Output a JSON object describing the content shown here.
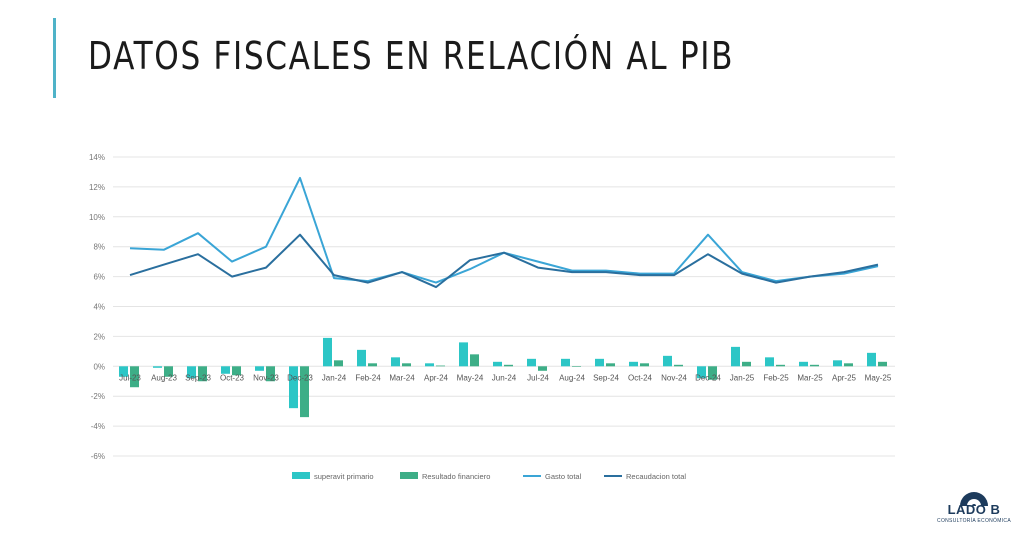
{
  "slide": {
    "title": "DATOS FISCALES EN RELACIÓN AL PIB"
  },
  "logo": {
    "name": "LADO B",
    "tagline": "CONSULTORÍA ECONÓMICA",
    "color": "#1d3b5c"
  },
  "colors": {
    "superavit": "#2cc6c6",
    "resultado": "#3dae87",
    "gasto": "#3aa5d6",
    "recaudacion": "#2a6f9e",
    "grid": "#e4e4e4",
    "accent": "#4fb3c8"
  },
  "chart_data": {
    "type": "bar",
    "y_unit": "%",
    "ylim": [
      -6,
      14
    ],
    "yticks": [
      -6,
      -4,
      -2,
      0,
      2,
      4,
      6,
      8,
      10,
      12,
      14
    ],
    "ytick_labels": [
      "-6%",
      "-4%",
      "-2%",
      "0%",
      "2%",
      "4%",
      "6%",
      "8%",
      "10%",
      "12%",
      "14%"
    ],
    "grid": true,
    "legend_position": "bottom",
    "categories": [
      "Jul-23",
      "Aug-23",
      "Sep-23",
      "Oct-23",
      "Nov-23",
      "Dec-23",
      "Jan-24",
      "Feb-24",
      "Mar-24",
      "Apr-24",
      "May-24",
      "Jun-24",
      "Jul-24",
      "Aug-24",
      "Sep-24",
      "Oct-24",
      "Nov-24",
      "Dec-24",
      "Jan-25",
      "Feb-25",
      "Mar-25",
      "Apr-25",
      "May-25"
    ],
    "series": [
      {
        "name": "superavit primario",
        "kind": "bar",
        "values": [
          -0.7,
          -0.1,
          -0.8,
          -0.5,
          -0.3,
          -2.8,
          1.9,
          1.1,
          0.6,
          0.2,
          1.6,
          0.3,
          0.5,
          0.5,
          0.5,
          0.3,
          0.7,
          -0.8,
          1.3,
          0.6,
          0.3,
          0.4,
          0.9
        ]
      },
      {
        "name": "Resultado financiero",
        "kind": "bar",
        "values": [
          -1.4,
          -0.7,
          -1.0,
          -0.6,
          -1.0,
          -3.4,
          0.4,
          0.2,
          0.2,
          0.05,
          0.8,
          0.1,
          -0.3,
          0.0,
          0.2,
          0.2,
          0.1,
          -0.9,
          0.3,
          0.1,
          0.1,
          0.2,
          0.3
        ]
      },
      {
        "name": "Gasto total",
        "kind": "line",
        "values": [
          7.9,
          7.8,
          8.9,
          7.0,
          8.0,
          12.6,
          5.9,
          5.7,
          6.3,
          5.6,
          6.5,
          7.6,
          7.0,
          6.4,
          6.4,
          6.2,
          6.2,
          8.8,
          6.3,
          5.7,
          6.0,
          6.2,
          6.7
        ]
      },
      {
        "name": "Recaudacion total",
        "kind": "line",
        "values": [
          6.1,
          6.8,
          7.5,
          6.0,
          6.6,
          8.8,
          6.1,
          5.6,
          6.3,
          5.3,
          7.1,
          7.6,
          6.6,
          6.3,
          6.3,
          6.1,
          6.1,
          7.5,
          6.2,
          5.6,
          6.0,
          6.3,
          6.8
        ]
      }
    ]
  }
}
